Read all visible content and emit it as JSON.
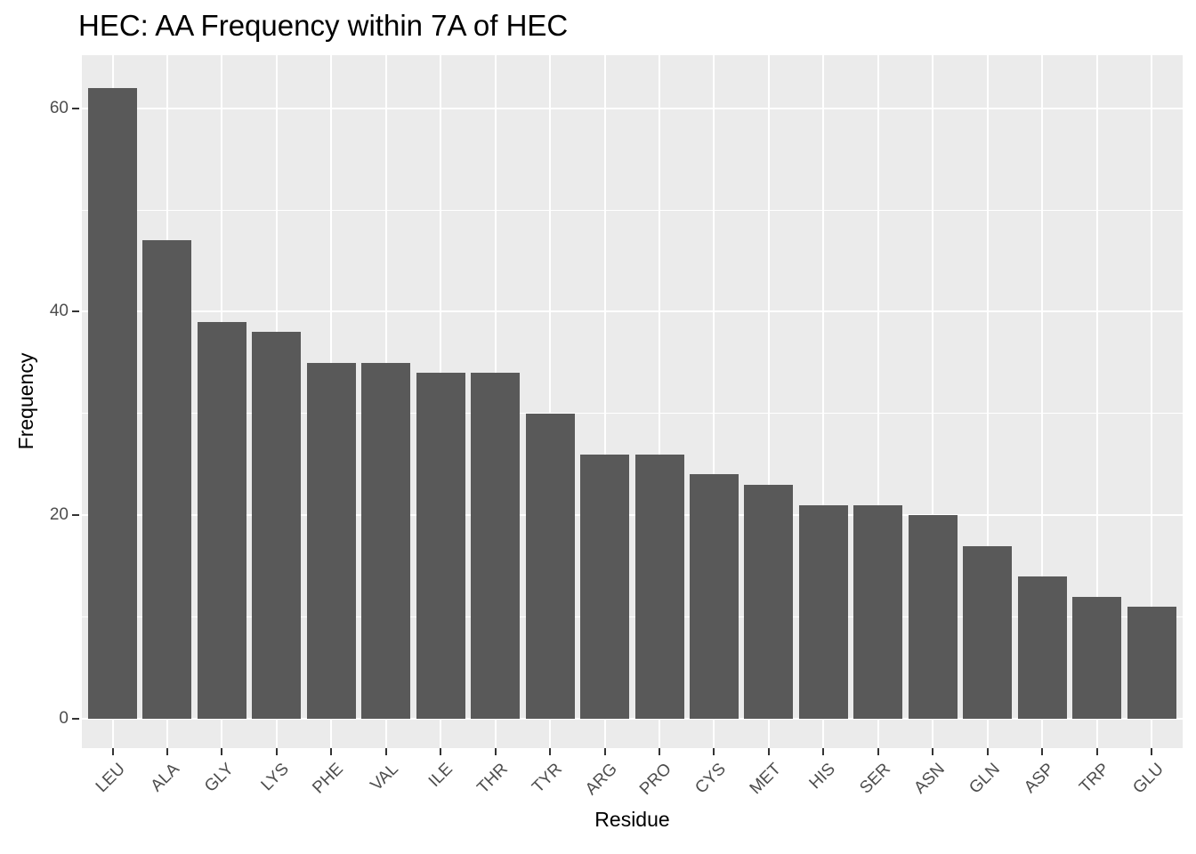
{
  "chart_data": {
    "type": "bar",
    "title": "HEC: AA Frequency within 7A of HEC",
    "xlabel": "Residue",
    "ylabel": "Frequency",
    "categories": [
      "LEU",
      "ALA",
      "GLY",
      "LYS",
      "PHE",
      "VAL",
      "ILE",
      "THR",
      "TYR",
      "ARG",
      "PRO",
      "CYS",
      "MET",
      "HIS",
      "SER",
      "ASN",
      "GLN",
      "ASP",
      "TRP",
      "GLU"
    ],
    "values": [
      62,
      47,
      39,
      38,
      35,
      35,
      34,
      34,
      30,
      26,
      26,
      24,
      23,
      21,
      21,
      20,
      17,
      14,
      12,
      11
    ],
    "yticks": [
      0,
      20,
      40,
      60
    ],
    "yticks_minor": [
      10,
      30,
      50
    ],
    "ylim": [
      0,
      65
    ],
    "grid": "on",
    "legend": "none",
    "x_label_angle_deg": 45,
    "colors": {
      "bar_fill": "#595959",
      "panel_background": "#EBEBEB",
      "gridline": "#FFFFFF",
      "axis_tick_text": "#4D4D4D",
      "tick_mark": "#333333",
      "title_text": "#000000",
      "page_background": "#FFFFFF"
    }
  }
}
